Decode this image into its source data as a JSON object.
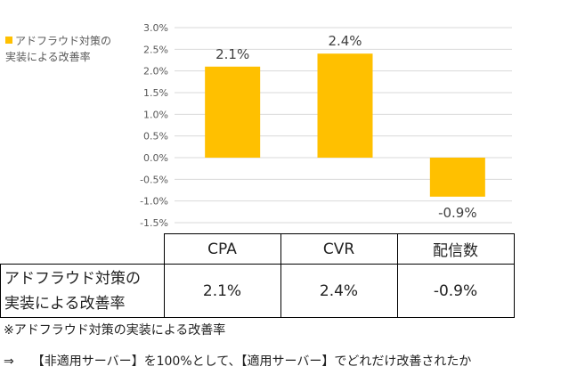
{
  "chart_data": {
    "type": "bar",
    "categories": [
      "CPA",
      "CVR",
      "配信数"
    ],
    "series": [
      {
        "name": "アドフラウド対策の実装による改善率",
        "values": [
          2.1,
          2.4,
          -0.9
        ]
      }
    ],
    "data_labels": [
      "2.1%",
      "2.4%",
      "-0.9%"
    ],
    "ylim": [
      -1.5,
      3.0
    ],
    "yticks": [
      "-1.5%",
      "-1.0%",
      "-0.5%",
      "0.0%",
      "0.5%",
      "1.0%",
      "1.5%",
      "2.0%",
      "2.5%",
      "3.0%"
    ],
    "ytick_values": [
      -1.5,
      -1.0,
      -0.5,
      0.0,
      0.5,
      1.0,
      1.5,
      2.0,
      2.5,
      3.0
    ],
    "grid": true,
    "legend_position": "top-left",
    "bar_color": "#FFC000"
  },
  "legend": {
    "label_line1": "アドフラウド対策の",
    "label_line2": "実装による改善率"
  },
  "table": {
    "headers": [
      "CPA",
      "CVR",
      "配信数"
    ],
    "row_label_line1": "アドフラウド対策の",
    "row_label_line2": "実装による改善率",
    "values": [
      "2.1%",
      "2.4%",
      "-0.9%"
    ]
  },
  "notes": {
    "line1": "※アドフラウド対策の実装による改善率",
    "arrow": "⇒",
    "line2": "【非適用サーバー】を100%として、【適用サーバー】でどれだけ改善されたか"
  }
}
